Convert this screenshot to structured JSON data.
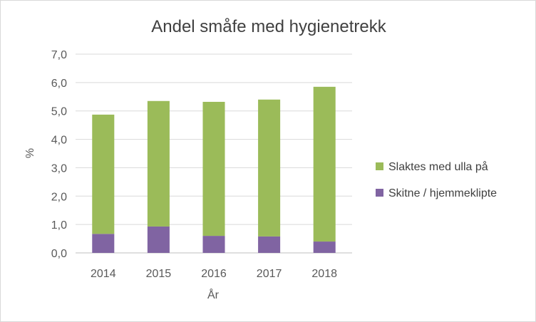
{
  "chart_data": {
    "type": "bar",
    "stacked": true,
    "title": "Andel småfe med hygienetrekk",
    "xlabel": "År",
    "ylabel": "%",
    "categories": [
      "2014",
      "2015",
      "2016",
      "2017",
      "2018"
    ],
    "ylim": [
      0,
      7
    ],
    "yticks": [
      "0,0",
      "1,0",
      "2,0",
      "3,0",
      "4,0",
      "5,0",
      "6,0",
      "7,0"
    ],
    "grid": true,
    "legend_position": "right",
    "series": [
      {
        "name": "Skitne / hjemmeklipte",
        "color": "#8064a2",
        "values": [
          0.67,
          0.93,
          0.6,
          0.58,
          0.4
        ]
      },
      {
        "name": "Slaktes med ulla på",
        "color": "#9bbb59",
        "values": [
          4.2,
          4.42,
          4.72,
          4.82,
          5.45
        ]
      }
    ]
  }
}
